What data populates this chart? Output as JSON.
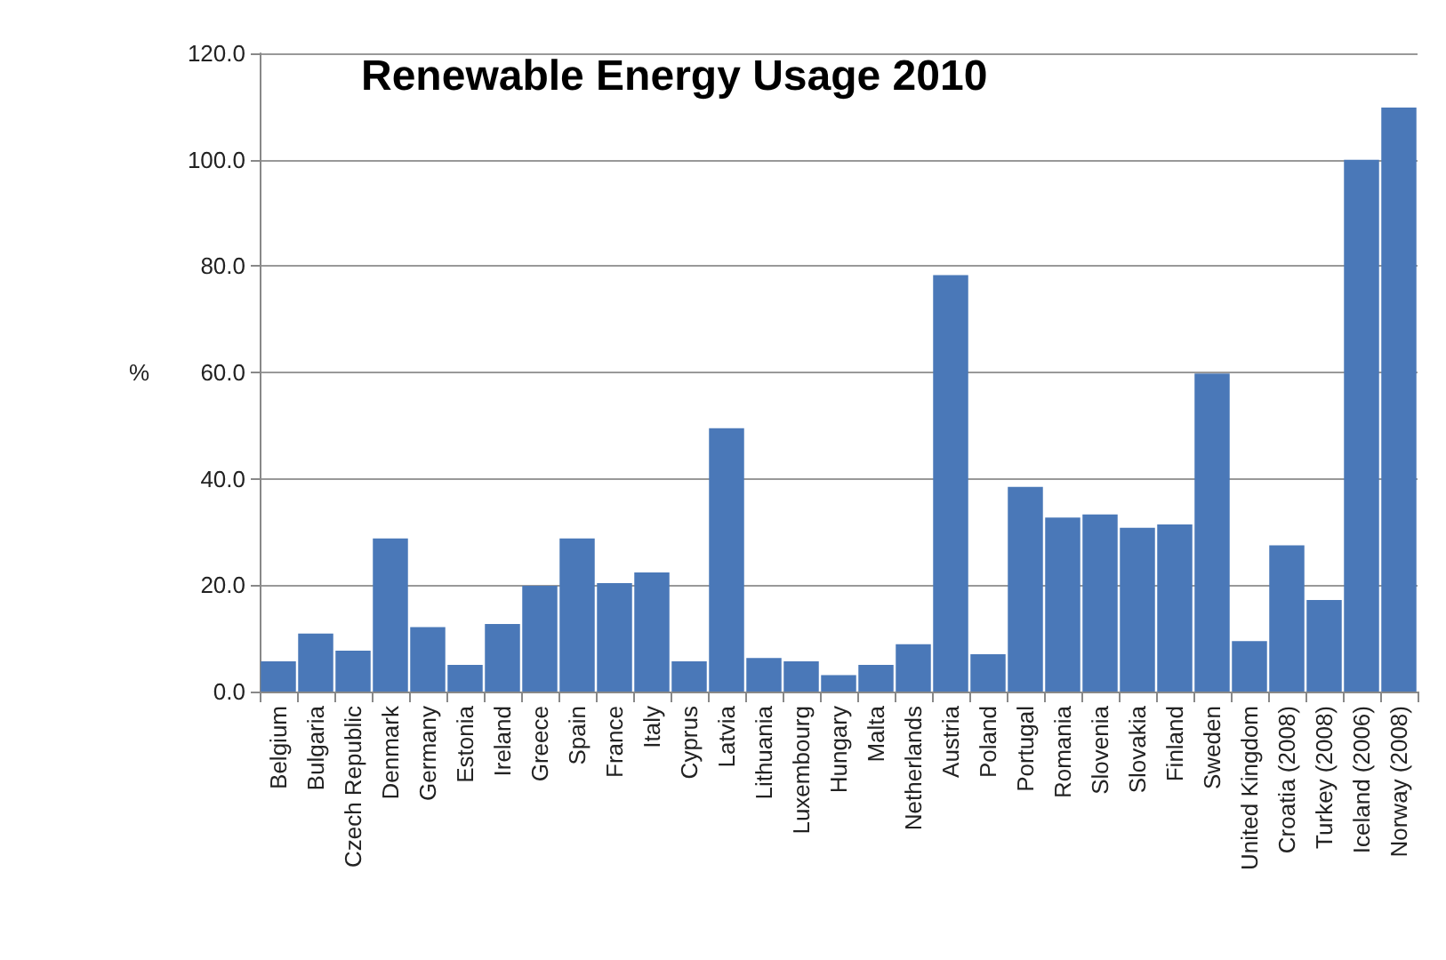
{
  "chart_data": {
    "type": "bar",
    "title": "Renewable Energy Usage 2010",
    "ylabel": "%",
    "categories": [
      "Belgium",
      "Bulgaria",
      "Czech Republic",
      "Denmark",
      "Germany",
      "Estonia",
      "Ireland",
      "Greece",
      "Spain",
      "France",
      "Italy",
      "Cyprus",
      "Latvia",
      "Lithuania",
      "Luxembourg",
      "Hungary",
      "Malta",
      "Netherlands",
      "Austria",
      "Poland",
      "Portugal",
      "Romania",
      "Slovenia",
      "Slovakia",
      "Finland",
      "Sweden",
      "United Kingdom",
      "Croatia (2008)",
      "Turkey (2008)",
      "Iceland (2006)",
      "Norway (2008)"
    ],
    "values": [
      5.7,
      10.9,
      7.7,
      28.8,
      12.1,
      5.0,
      12.7,
      19.9,
      28.8,
      20.4,
      22.4,
      5.7,
      49.5,
      6.3,
      5.7,
      3.1,
      5.0,
      8.9,
      78.3,
      7.0,
      38.5,
      32.7,
      33.3,
      30.8,
      31.4,
      59.8,
      9.5,
      27.5,
      17.2,
      100.0,
      109.8
    ],
    "color": "#4a78b8",
    "ylim": [
      0,
      120
    ],
    "yticks": [
      {
        "value": 0,
        "label": "0.0"
      },
      {
        "value": 20,
        "label": "20.0"
      },
      {
        "value": 40,
        "label": "40.0"
      },
      {
        "value": 60,
        "label": "60.0"
      },
      {
        "value": 80,
        "label": "80.0"
      },
      {
        "value": 100,
        "label": "100.0"
      },
      {
        "value": 120,
        "label": "120.0"
      }
    ],
    "grid": "y"
  }
}
